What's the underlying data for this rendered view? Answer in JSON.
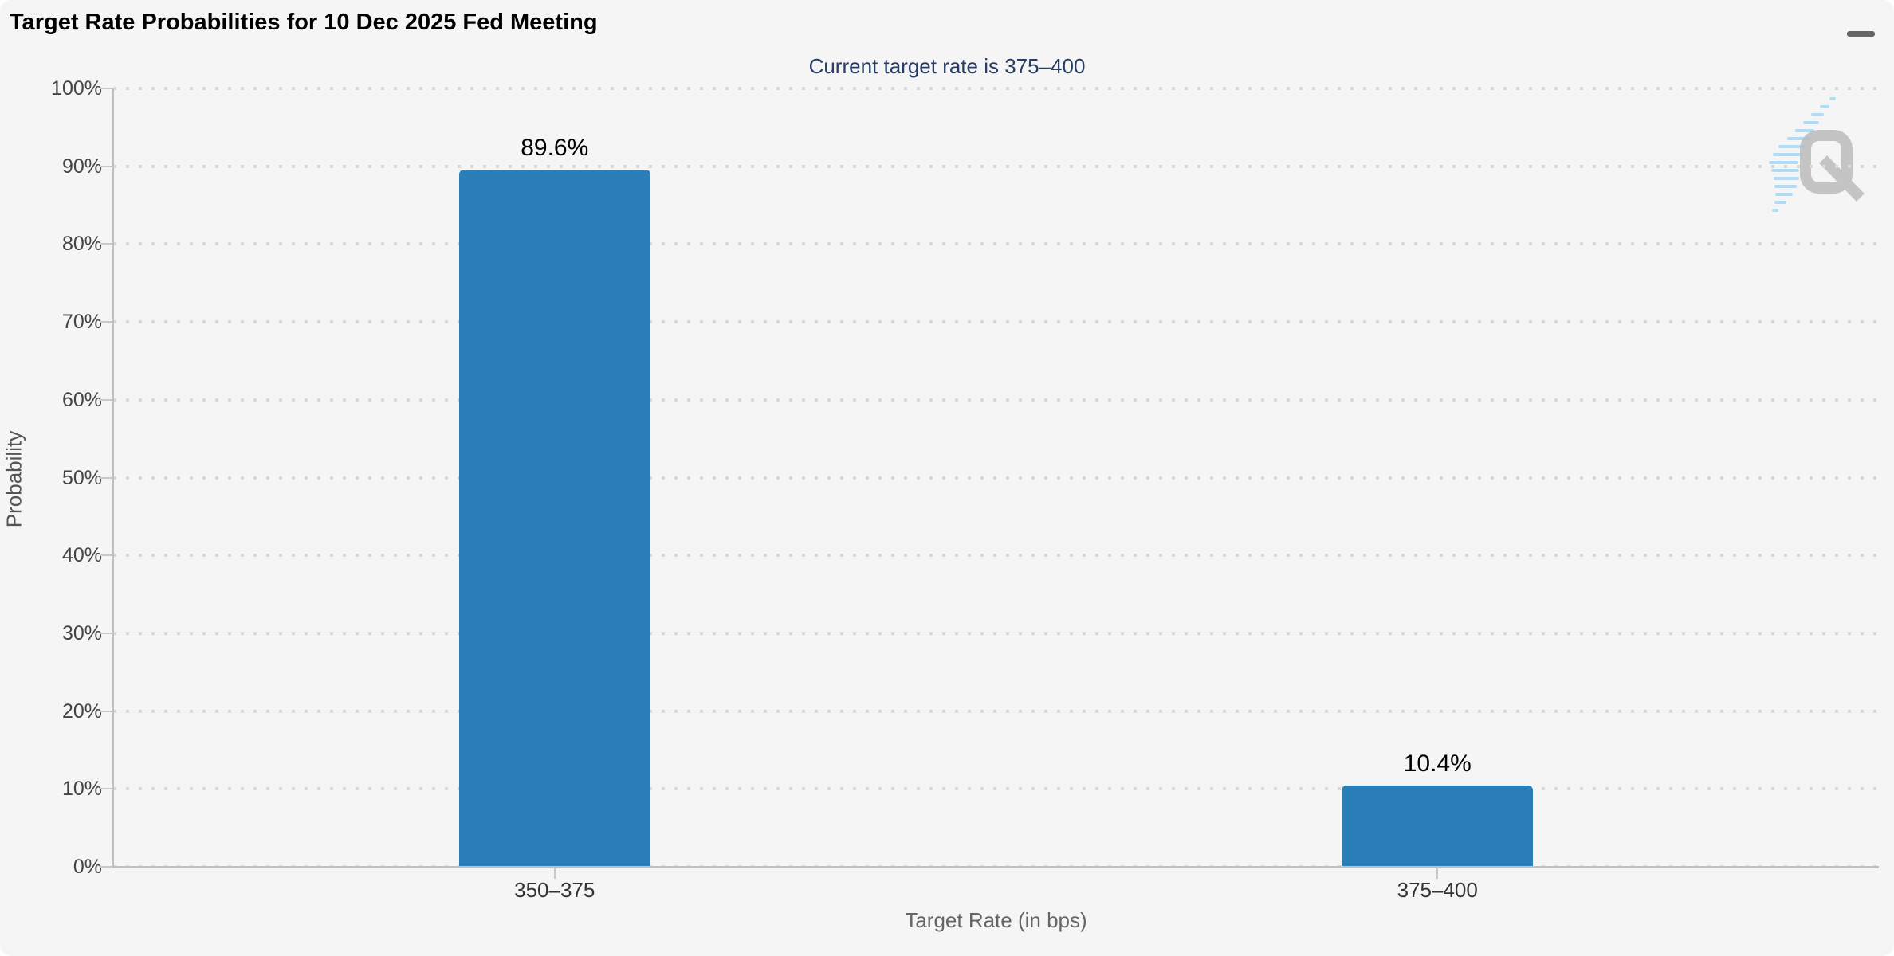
{
  "chart": {
    "title": "Target Rate Probabilities for 10 Dec 2025 Fed Meeting",
    "subtitle": "Current target rate is 375–400",
    "menu_icon": "hamburger-menu-icon",
    "watermark_letter": "Q",
    "colors": {
      "background": "#f5f5f5",
      "bar": "#2a7fb8",
      "subtitle_navy": "#263d66",
      "axis_line": "#c0c0c0",
      "gridline": "#d8d8d8",
      "tick_label": "#444444",
      "axis_title": "#666666",
      "watermark_gray": "#b9b9b9",
      "watermark_blue": "#a5d9f5"
    }
  },
  "chart_data": {
    "type": "bar",
    "title": "Target Rate Probabilities for 10 Dec 2025 Fed Meeting",
    "subtitle": "Current target rate is 375–400",
    "categories": [
      "350–375",
      "375–400"
    ],
    "values": [
      89.6,
      10.4
    ],
    "value_labels": [
      "89.6%",
      "10.4%"
    ],
    "xlabel": "Target Rate (in bps)",
    "ylabel": "Probability",
    "ylim": [
      0,
      100
    ],
    "ytick_step": 10,
    "ytick_suffix": "%",
    "grid": "dotted horizontal",
    "legend": "none"
  }
}
